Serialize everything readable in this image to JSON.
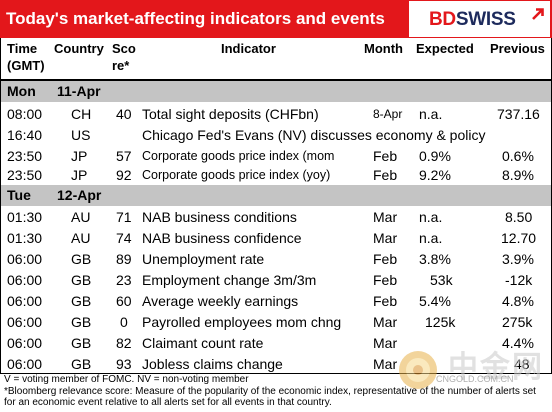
{
  "header": {
    "title": "Today's market-affecting indicators and events",
    "logo": {
      "bd": "BD",
      "swiss": "SWISS"
    },
    "colors": {
      "accent": "#e3171b",
      "day_band": "#c4c4c4",
      "logo_navy": "#1d2a5c"
    }
  },
  "columns": {
    "time": "Time",
    "time_sub": "(GMT)",
    "country": "Country",
    "score": "Sco",
    "score_sub": "re*",
    "indicator": "Indicator",
    "month": "Month",
    "expected": "Expected",
    "previous": "Previous"
  },
  "days": [
    {
      "day": "Mon",
      "date": "11-Apr"
    },
    {
      "day": "Tue",
      "date": "12-Apr"
    }
  ],
  "rows": [
    {
      "time": "08:00",
      "country": "CH",
      "score": "40",
      "indicator": "Total sight deposits (CHFbn)",
      "month": "8-Apr",
      "expected": "n.a.",
      "previous": "737.16"
    },
    {
      "time": "16:40",
      "country": "US",
      "score": "",
      "indicator": "Chicago Fed's Evans (NV) discusses economy & policy",
      "month": "",
      "expected": "",
      "previous": ""
    },
    {
      "time": "23:50",
      "country": "JP",
      "score": "57",
      "indicator": "Corporate goods price index (mom",
      "month": "Feb",
      "expected": "0.9%",
      "previous": "0.6%"
    },
    {
      "time": "23:50",
      "country": "JP",
      "score": "92",
      "indicator": "Corporate goods price index (yoy)",
      "month": "Feb",
      "expected": "9.2%",
      "previous": "8.9%"
    },
    {
      "time": "01:30",
      "country": "AU",
      "score": "71",
      "indicator": "NAB business conditions",
      "month": "Mar",
      "expected": "n.a.",
      "previous": "8.50"
    },
    {
      "time": "01:30",
      "country": "AU",
      "score": "74",
      "indicator": "NAB business confidence",
      "month": "Mar",
      "expected": "n.a.",
      "previous": "12.70"
    },
    {
      "time": "06:00",
      "country": "GB",
      "score": "89",
      "indicator": "Unemployment rate",
      "month": "Feb",
      "expected": "3.8%",
      "previous": "3.9%"
    },
    {
      "time": "06:00",
      "country": "GB",
      "score": "23",
      "indicator": "Employment change 3m/3m",
      "month": "Feb",
      "expected": "53k",
      "previous": "-12k"
    },
    {
      "time": "06:00",
      "country": "GB",
      "score": "60",
      "indicator": "Average weekly earnings",
      "month": "Feb",
      "expected": "5.4%",
      "previous": "4.8%"
    },
    {
      "time": "06:00",
      "country": "GB",
      "score": "0",
      "indicator": "Payrolled employees mom chng",
      "month": "Mar",
      "expected": "125k",
      "previous": "275k"
    },
    {
      "time": "06:00",
      "country": "GB",
      "score": "82",
      "indicator": "Claimant count rate",
      "month": "Mar",
      "expected": "",
      "previous": "4.4%"
    },
    {
      "time": "06:00",
      "country": "GB",
      "score": "93",
      "indicator": "Jobless claims change",
      "month": "Mar",
      "expected": "",
      "previous": "48"
    }
  ],
  "footnote": {
    "line1": "V = voting member of FOMC. NV = non-voting member",
    "line2": "*Bloomberg relevance score:  Measure of the popularity of the economic index, representative of the number of alerts set for an economic event relative to all alerts set for all events in that country."
  },
  "watermark": {
    "cn": "中金网",
    "url": "CNGOLD.COM.CN"
  }
}
